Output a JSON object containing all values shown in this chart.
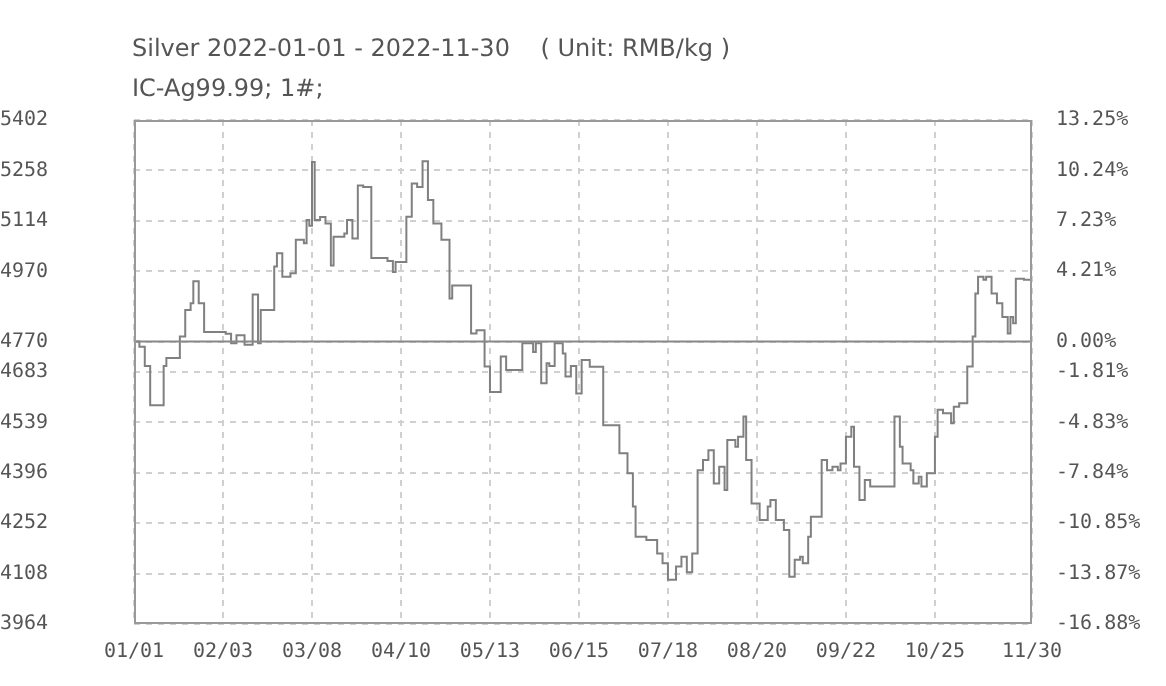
{
  "chart_data": {
    "type": "step",
    "title": "Silver 2022-01-01 - 2022-11-30    ( Unit: RMB/kg )",
    "subtitle": "IC-Ag99.99; 1#;",
    "x": [
      "--01-01",
      "--01-03",
      "--01-05",
      "--01-07",
      "--01-09",
      "--01-12",
      "--01-13",
      "--01-16",
      "--01-18",
      "--01-20",
      "--01-22",
      "--01-23",
      "--01-25",
      "--01-27",
      "--02-04",
      "--02-06",
      "--02-08",
      "--02-11",
      "--02-13",
      "--02-14",
      "--02-16",
      "--02-17",
      "--02-19",
      "--02-22",
      "--02-23",
      "--02-25",
      "--02-28",
      "--03-02",
      "--03-05",
      "--03-06",
      "--03-07",
      "--03-08",
      "--03-09",
      "--03-11",
      "--03-13",
      "--03-15",
      "--03-16",
      "--03-20",
      "--03-21",
      "--03-23",
      "--03-25",
      "--03-27",
      "--03-30",
      "--04-05",
      "--04-07",
      "--04-08",
      "--04-12",
      "--04-14",
      "--04-16",
      "--04-18",
      "--04-20",
      "--04-22",
      "--04-25",
      "--04-28",
      "--04-29",
      "--05-04",
      "--05-06",
      "--05-08",
      "--05-11",
      "--05-13",
      "--05-15",
      "--05-17",
      "--05-19",
      "--05-22",
      "--05-25",
      "--05-29",
      "--05-30",
      "--06-01",
      "--06-03",
      "--06-04",
      "--06-06",
      "--06-09",
      "--06-10",
      "--06-12",
      "--06-14",
      "--06-16",
      "--06-19",
      "--06-24",
      "--06-28",
      "--06-30",
      "--07-03",
      "--07-05",
      "--07-06",
      "--07-10",
      "--07-14",
      "--07-16",
      "--07-18",
      "--07-21",
      "--07-23",
      "--07-25",
      "--07-27",
      "--07-29",
      "--07-31",
      "--08-02",
      "--08-04",
      "--08-06",
      "--08-08",
      "--08-09",
      "--08-12",
      "--08-13",
      "--08-15",
      "--08-16",
      "--08-18",
      "--08-21",
      "--08-24",
      "--08-25",
      "--08-27",
      "--08-30",
      "--09-01",
      "--09-03",
      "--09-05",
      "--09-06",
      "--09-08",
      "--09-09",
      "--09-12",
      "--09-13",
      "--09-15",
      "--09-17",
      "--09-19",
      "--09-20",
      "--09-22",
      "--09-24",
      "--09-25",
      "--09-27",
      "--09-29",
      "--10-01",
      "--10-08",
      "--10-10",
      "--10-12",
      "--10-13",
      "--10-16",
      "--10-17",
      "--10-19",
      "--10-20",
      "--10-22",
      "--10-23",
      "--10-25",
      "--10-26",
      "--10-28",
      "--10-31",
      "--11-01",
      "--11-03",
      "--11-05",
      "--11-06",
      "--11-08",
      "--11-09",
      "--11-10",
      "--11-12",
      "--11-13",
      "--11-15",
      "--11-17",
      "--11-19",
      "--11-21",
      "--11-22",
      "--11-23",
      "--11-24",
      "--11-27",
      "--11-30"
    ],
    "values": [
      4770,
      4755,
      4700,
      4588,
      4588,
      4700,
      4723,
      4723,
      4784,
      4860,
      4879,
      4942,
      4879,
      4797,
      4792,
      4765,
      4788,
      4761,
      4761,
      4904,
      4765,
      4860,
      4860,
      4984,
      5022,
      4955,
      4965,
      5060,
      5050,
      5117,
      5100,
      5282,
      5117,
      5125,
      5107,
      4987,
      5069,
      5078,
      5117,
      5064,
      5215,
      5211,
      5008,
      5000,
      4968,
      4997,
      5126,
      5221,
      5211,
      5284,
      5174,
      5107,
      5060,
      4893,
      4930,
      4930,
      4793,
      4802,
      4699,
      4626,
      4626,
      4727,
      4689,
      4689,
      4765,
      4740,
      4765,
      4651,
      4708,
      4700,
      4765,
      4736,
      4670,
      4700,
      4622,
      4717,
      4698,
      4531,
      4531,
      4451,
      4394,
      4299,
      4213,
      4204,
      4165,
      4137,
      4090,
      4128,
      4156,
      4112,
      4165,
      4403,
      4432,
      4460,
      4365,
      4413,
      4346,
      4489,
      4470,
      4498,
      4556,
      4432,
      4308,
      4261,
      4299,
      4318,
      4261,
      4232,
      4099,
      4147,
      4156,
      4137,
      4213,
      4270,
      4270,
      4432,
      4403,
      4413,
      4403,
      4422,
      4498,
      4527,
      4413,
      4318,
      4375,
      4356,
      4356,
      4556,
      4470,
      4422,
      4403,
      4365,
      4384,
      4356,
      4394,
      4394,
      4498,
      4575,
      4565,
      4537,
      4584,
      4594,
      4594,
      4699,
      4784,
      4907,
      4955,
      4946,
      4955,
      4907,
      4879,
      4840,
      4793,
      4840,
      4822,
      4949,
      4946,
      4927
    ],
    "color": "#808080",
    "marker": "none",
    "xlim": [
      "--01-01",
      "--11-30"
    ],
    "xticks": [
      {
        "value": "--01-01",
        "label": "01/01"
      },
      {
        "value": "--02-03",
        "label": "02/03"
      },
      {
        "value": "--03-08",
        "label": "03/08"
      },
      {
        "value": "--04-10",
        "label": "04/10"
      },
      {
        "value": "--05-13",
        "label": "05/13"
      },
      {
        "value": "--06-15",
        "label": "06/15"
      },
      {
        "value": "--07-18",
        "label": "07/18"
      },
      {
        "value": "--08-20",
        "label": "08/20"
      },
      {
        "value": "--09-22",
        "label": "09/22"
      },
      {
        "value": "--10-25",
        "label": "10/25"
      },
      {
        "value": "--11-30",
        "label": "11/30"
      }
    ],
    "ylim": [
      3964,
      5402
    ],
    "yticks": [
      3964,
      4108,
      4252,
      4396,
      4539,
      4683,
      4770,
      4970,
      5114,
      5258,
      5402
    ],
    "y2lim": [
      -16.88,
      13.25
    ],
    "y2ticks": [
      {
        "value": -16.88,
        "label": "-16.88%"
      },
      {
        "value": -13.87,
        "label": "-13.87%"
      },
      {
        "value": -10.85,
        "label": "-10.85%"
      },
      {
        "value": -7.84,
        "label": "-7.84%"
      },
      {
        "value": -4.83,
        "label": "-4.83%"
      },
      {
        "value": -1.81,
        "label": "-1.81%"
      },
      {
        "value": 0,
        "label": "0.00%"
      },
      {
        "value": 4.21,
        "label": "4.21%"
      },
      {
        "value": 7.23,
        "label": "7.23%"
      },
      {
        "value": 10.24,
        "label": "10.24%"
      },
      {
        "value": 13.25,
        "label": "13.25%"
      }
    ],
    "grid": true,
    "ref_lines": [
      {
        "axis": "y",
        "value": 4770,
        "color": "#888888"
      }
    ]
  }
}
